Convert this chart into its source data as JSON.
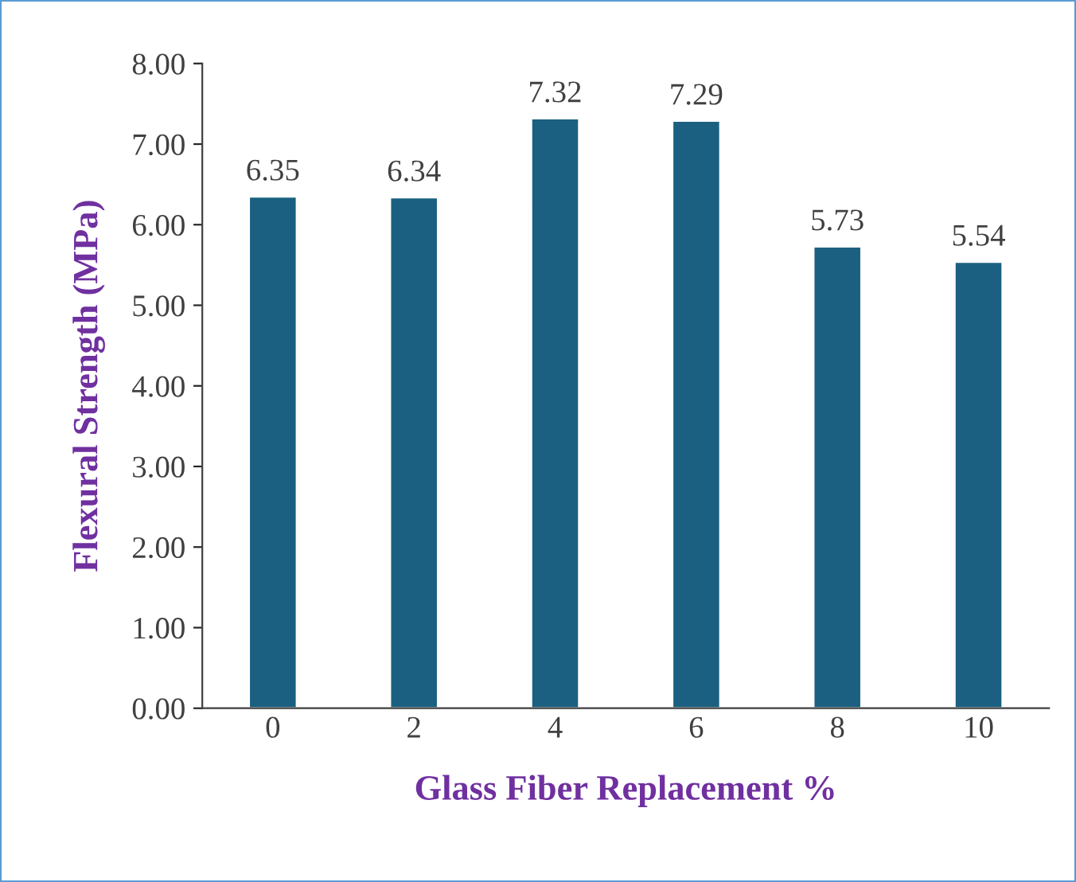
{
  "chart_data": {
    "type": "bar",
    "xlabel": "Glass Fiber Replacement %",
    "ylabel": "Flexural Strength (MPa)",
    "categories": [
      "0",
      "2",
      "4",
      "6",
      "8",
      "10"
    ],
    "values": [
      6.35,
      6.34,
      7.32,
      7.29,
      5.73,
      5.54
    ],
    "color": "#1b6080",
    "data_labels": true,
    "ylim": [
      0,
      8
    ],
    "yticks": [
      {
        "value": 0,
        "label": "0.00"
      },
      {
        "value": 1,
        "label": "1.00"
      },
      {
        "value": 2,
        "label": "2.00"
      },
      {
        "value": 3,
        "label": "3.00"
      },
      {
        "value": 4,
        "label": "4.00"
      },
      {
        "value": 5,
        "label": "5.00"
      },
      {
        "value": 6,
        "label": "6.00"
      },
      {
        "value": 7,
        "label": "7.00"
      },
      {
        "value": 8,
        "label": "8.00"
      }
    ],
    "grid": false,
    "legend": false
  }
}
